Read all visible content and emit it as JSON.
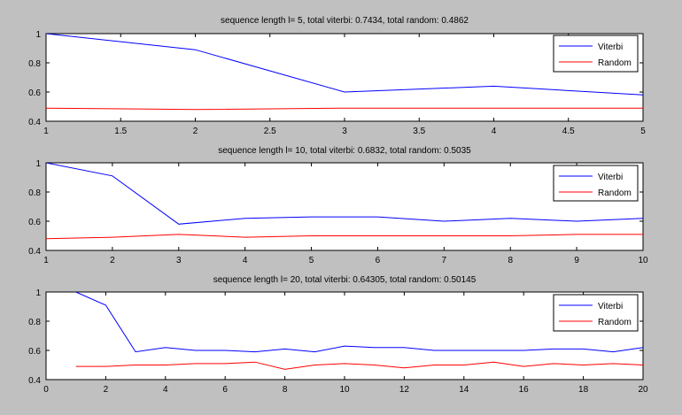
{
  "chart_data": [
    {
      "type": "line",
      "title": "sequence length l= 5, total viterbi: 0.7434, total random: 0.4862",
      "xlim": [
        1,
        5
      ],
      "ylim": [
        0.4,
        1
      ],
      "xticks": [
        "1",
        "1.5",
        "2",
        "2.5",
        "3",
        "3.5",
        "4",
        "4.5",
        "5"
      ],
      "yticks": [
        "0.4",
        "0.6",
        "0.8",
        "1"
      ],
      "legend_position": "top-right",
      "grid": false,
      "series": [
        {
          "name": "Viterbi",
          "color": "#0000ff",
          "x": [
            1,
            2,
            3,
            4,
            5
          ],
          "y": [
            1.0,
            0.89,
            0.6,
            0.64,
            0.58
          ]
        },
        {
          "name": "Random",
          "color": "#ff0000",
          "x": [
            1,
            2,
            3,
            4,
            5
          ],
          "y": [
            0.49,
            0.48,
            0.49,
            0.49,
            0.49
          ]
        }
      ]
    },
    {
      "type": "line",
      "title": "sequence length l= 10, total viterbi: 0.6832, total random: 0.5035",
      "xlim": [
        1,
        10
      ],
      "ylim": [
        0.4,
        1
      ],
      "xticks": [
        "1",
        "2",
        "3",
        "4",
        "5",
        "6",
        "7",
        "8",
        "9",
        "10"
      ],
      "yticks": [
        "0.4",
        "0.6",
        "0.8",
        "1"
      ],
      "legend_position": "top-right",
      "grid": false,
      "series": [
        {
          "name": "Viterbi",
          "color": "#0000ff",
          "x": [
            1,
            2,
            3,
            4,
            5,
            6,
            7,
            8,
            9,
            10
          ],
          "y": [
            1.0,
            0.91,
            0.58,
            0.62,
            0.63,
            0.63,
            0.6,
            0.62,
            0.6,
            0.62
          ]
        },
        {
          "name": "Random",
          "color": "#ff0000",
          "x": [
            1,
            2,
            3,
            4,
            5,
            6,
            7,
            8,
            9,
            10
          ],
          "y": [
            0.48,
            0.49,
            0.51,
            0.49,
            0.5,
            0.5,
            0.5,
            0.5,
            0.51,
            0.51
          ]
        }
      ]
    },
    {
      "type": "line",
      "title": "sequence length l= 20, total viterbi: 0.64305, total random: 0.50145",
      "xlim": [
        0,
        20
      ],
      "ylim": [
        0.4,
        1
      ],
      "xticks": [
        "0",
        "2",
        "4",
        "6",
        "8",
        "10",
        "12",
        "14",
        "16",
        "18",
        "20"
      ],
      "yticks": [
        "0.4",
        "0.6",
        "0.8",
        "1"
      ],
      "legend_position": "top-right",
      "grid": false,
      "series": [
        {
          "name": "Viterbi",
          "color": "#0000ff",
          "x": [
            1,
            2,
            3,
            4,
            5,
            6,
            7,
            8,
            9,
            10,
            11,
            12,
            13,
            14,
            15,
            16,
            17,
            18,
            19,
            20
          ],
          "y": [
            1.0,
            0.91,
            0.59,
            0.62,
            0.6,
            0.6,
            0.59,
            0.61,
            0.59,
            0.63,
            0.62,
            0.62,
            0.6,
            0.6,
            0.6,
            0.6,
            0.61,
            0.61,
            0.59,
            0.62
          ]
        },
        {
          "name": "Random",
          "color": "#ff0000",
          "x": [
            1,
            2,
            3,
            4,
            5,
            6,
            7,
            8,
            9,
            10,
            11,
            12,
            13,
            14,
            15,
            16,
            17,
            18,
            19,
            20
          ],
          "y": [
            0.49,
            0.49,
            0.5,
            0.5,
            0.51,
            0.51,
            0.52,
            0.47,
            0.5,
            0.51,
            0.5,
            0.48,
            0.5,
            0.5,
            0.52,
            0.49,
            0.51,
            0.5,
            0.51,
            0.5
          ]
        }
      ]
    }
  ]
}
